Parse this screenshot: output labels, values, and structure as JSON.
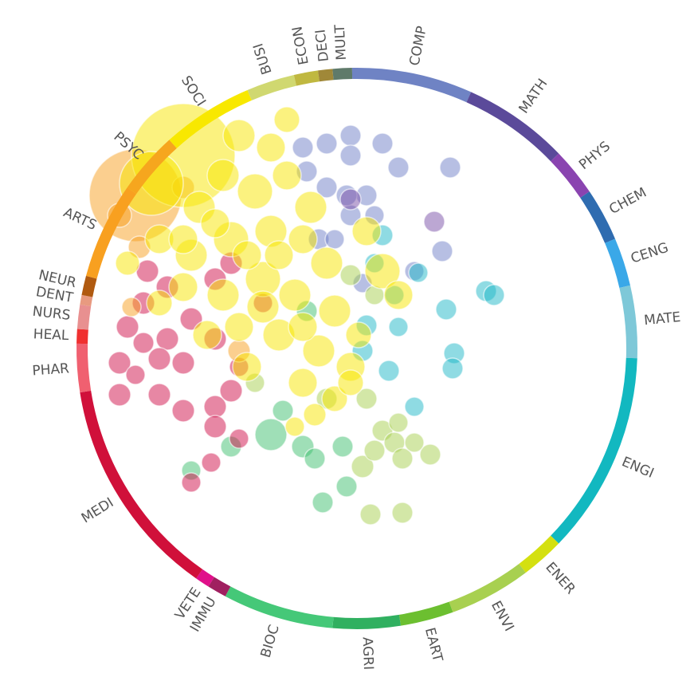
{
  "chart_data": {
    "type": "radial-bubble",
    "categories": [
      "COMP",
      "MATH",
      "PHYS",
      "CHEM",
      "CENG",
      "MATE",
      "ENGI",
      "ENER",
      "ENVI",
      "EART",
      "AGRI",
      "BIOC",
      "IMMU",
      "VETE",
      "MEDI",
      "PHAR",
      "HEAL",
      "NURS",
      "DENT",
      "NEUR",
      "ARTS",
      "PSYC",
      "SOCI",
      "BUSI",
      "ECON",
      "DECI",
      "MULT"
    ],
    "values": [
      25,
      22,
      10,
      11,
      10,
      15,
      42,
      9,
      17,
      11,
      14,
      23,
      4,
      3,
      46,
      10,
      3,
      5,
      2,
      4,
      20,
      13,
      19,
      10,
      5,
      3,
      4
    ],
    "colors": [
      "#6f83c4",
      "#5b4a9a",
      "#8a44b0",
      "#2f6cb0",
      "#3aa8e8",
      "#7ec8d8",
      "#12b8c0",
      "#d4e010",
      "#a8d050",
      "#6cbf30",
      "#30b060",
      "#45c878",
      "#a02060",
      "#e0108a",
      "#d0103a",
      "#f06070",
      "#f03030",
      "#e89090",
      "#e89a80",
      "#b05a10",
      "#f8a020",
      "#f6a61e",
      "#f8e800",
      "#d0d870",
      "#c0b840",
      "#a08838",
      "#5f7a6a"
    ],
    "xlim": [
      -345,
      345
    ],
    "ylim": [
      -345,
      345
    ],
    "series": [
      {
        "color": "#7080c8",
        "x": [
          -8,
          32,
          -38,
          -8,
          52,
          117,
          -38,
          -8,
          12,
          22,
          -48,
          -28,
          -13,
          107,
          72,
          7,
          -63,
          -68
        ],
        "y": [
          267,
          257,
          257,
          242,
          227,
          227,
          202,
          167,
          192,
          167,
          137,
          137,
          192,
          122,
          97,
          82,
          222,
          252
        ],
        "size": [
          13,
          13,
          13,
          13,
          13,
          13,
          13,
          13,
          13,
          12,
          13,
          12,
          13,
          13,
          12,
          12,
          13,
          13
        ]
      },
      {
        "color": "#7a50a8",
        "x": [
          97,
          -8
        ],
        "y": [
          159,
          187
        ],
        "size": [
          13,
          13
        ]
      },
      {
        "color": "#20b8c8",
        "x": [
          32,
          22,
          77,
          112,
          162,
          172,
          122,
          120,
          12,
          52,
          7,
          40,
          72,
          47
        ],
        "y": [
          142,
          107,
          95,
          49,
          72,
          67,
          -6,
          -25,
          29,
          27,
          -3,
          -28,
          -73,
          67
        ],
        "size": [
          13,
          12,
          12,
          13,
          13,
          13,
          13,
          13,
          13,
          12,
          13,
          13,
          12,
          12
        ]
      },
      {
        "color": "#40c070",
        "x": [
          -108,
          -93,
          -68,
          -53,
          -18,
          -43,
          -13,
          -158,
          -208,
          -63
        ],
        "y": [
          -108,
          -78,
          -123,
          -138,
          -123,
          -193,
          -173,
          -123,
          -153,
          47
        ],
        "size": [
          20,
          13,
          14,
          13,
          13,
          13,
          13,
          13,
          12,
          13
        ]
      },
      {
        "color": "#a8d050",
        "x": [
          7,
          17,
          57,
          92,
          32,
          47,
          52,
          22,
          57,
          -38,
          12,
          -128,
          -8,
          72,
          22
        ],
        "y": [
          -148,
          -208,
          -206,
          -133,
          -103,
          -118,
          -93,
          -128,
          -138,
          -63,
          -63,
          -43,
          92,
          -118,
          67
        ],
        "size": [
          14,
          13,
          13,
          13,
          13,
          13,
          12,
          13,
          13,
          13,
          13,
          12,
          13,
          12,
          12
        ]
      },
      {
        "color": "#d0104a",
        "x": [
          -263,
          -288,
          -298,
          -298,
          -248,
          -218,
          -178,
          -178,
          -158,
          -148,
          -178,
          -238,
          -218,
          -248,
          -238,
          -268,
          -178,
          -158,
          -118,
          -208,
          -268,
          -183,
          -208,
          -148,
          -278
        ],
        "y": [
          97,
          27,
          -18,
          -58,
          -58,
          -78,
          -73,
          -98,
          -53,
          -23,
          12,
          12,
          -18,
          -13,
          77,
          57,
          87,
          107,
          57,
          37,
          7,
          -143,
          -168,
          -113,
          -33
        ],
        "size": [
          14,
          14,
          14,
          14,
          14,
          14,
          14,
          14,
          14,
          12,
          14,
          14,
          14,
          14,
          14,
          14,
          14,
          14,
          12,
          14,
          13,
          12,
          12,
          12,
          12
        ]
      },
      {
        "color": "#f8a020",
        "x": [
          -278,
          -298,
          -273,
          -283,
          -148,
          -218
        ],
        "y": [
          192,
          167,
          127,
          52,
          -3,
          202
        ],
        "size": [
          58,
          15,
          14,
          12,
          14,
          14
        ]
      },
      {
        "color": "#f7e600",
        "x": [
          -218,
          -148,
          -108,
          -168,
          -198,
          -128,
          -88,
          -58,
          -248,
          -208,
          -158,
          -108,
          -68,
          -38,
          -218,
          -168,
          -118,
          -78,
          -28,
          -148,
          -98,
          -48,
          -8,
          -68,
          -28,
          -188,
          32,
          52,
          2,
          -138,
          -248,
          -258,
          -88,
          -178,
          12,
          -98,
          -138,
          -218,
          -118,
          -68,
          -288,
          -8,
          -53,
          -78
        ],
        "y": [
          242,
          267,
          252,
          217,
          177,
          197,
          217,
          177,
          137,
          117,
          137,
          147,
          137,
          107,
          77,
          67,
          87,
          67,
          47,
          27,
          17,
          -3,
          -23,
          -43,
          -63,
          17,
          97,
          67,
          17,
          -23,
          57,
          207,
          287,
          157,
          147,
          117,
          117,
          137,
          52,
          27,
          107,
          -43,
          -83,
          -98
        ],
        "size": [
          65,
          20,
          18,
          20,
          20,
          22,
          18,
          20,
          18,
          20,
          22,
          20,
          18,
          20,
          18,
          20,
          22,
          20,
          20,
          18,
          20,
          20,
          18,
          18,
          16,
          18,
          22,
          18,
          16,
          18,
          16,
          40,
          16,
          18,
          18,
          18,
          18,
          18,
          20,
          18,
          15,
          16,
          14,
          12
        ]
      }
    ]
  }
}
